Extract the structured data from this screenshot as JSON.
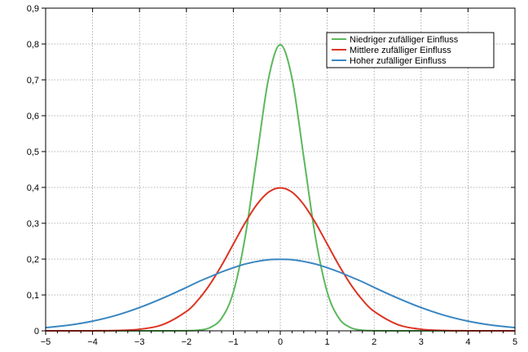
{
  "chart_data": {
    "type": "line",
    "title": "",
    "xlabel": "",
    "ylabel": "",
    "xlim": [
      -5,
      5
    ],
    "ylim": [
      0,
      0.9
    ],
    "grid": true,
    "legend_position": "top-right",
    "x_ticks": [
      -5,
      -4,
      -3,
      -2,
      -1,
      0,
      1,
      2,
      3,
      4,
      5
    ],
    "x_tick_labels": [
      "−5",
      "−4",
      "−3",
      "−2",
      "−1",
      "0",
      "1",
      "2",
      "3",
      "4",
      "5"
    ],
    "y_ticks": [
      0,
      0.1,
      0.2,
      0.3,
      0.4,
      0.5,
      0.6,
      0.7,
      0.8,
      0.9
    ],
    "y_tick_labels": [
      "0",
      "0,1",
      "0,2",
      "0,3",
      "0,4",
      "0,5",
      "0,6",
      "0,7",
      "0,8",
      "0,9"
    ],
    "x": [
      -5,
      -4.5,
      -4,
      -3.5,
      -3,
      -2.5,
      -2,
      -1.75,
      -1.5,
      -1.25,
      -1,
      -0.75,
      -0.5,
      -0.25,
      0,
      0.25,
      0.5,
      0.75,
      1,
      1.25,
      1.5,
      1.75,
      2,
      2.5,
      3,
      3.5,
      4,
      4.5,
      5
    ],
    "series": [
      {
        "name": "Niedriger zufälliger Einfluss",
        "color": "#5cb85c",
        "values": [
          0,
          0,
          0,
          0,
          0,
          0,
          0.0003,
          0.0017,
          0.0089,
          0.035,
          0.108,
          0.2605,
          0.4839,
          0.7041,
          0.7979,
          0.7041,
          0.4839,
          0.2605,
          0.108,
          0.035,
          0.0089,
          0.0017,
          0.0003,
          0,
          0,
          0,
          0,
          0,
          0
        ]
      },
      {
        "name": "Mittlere zufälliger Einfluss",
        "color": "#dd3322",
        "values": [
          1.5e-06,
          1.6e-05,
          0.000134,
          0.000873,
          0.0044,
          0.0175,
          0.054,
          0.0863,
          0.1295,
          0.1826,
          0.242,
          0.3011,
          0.3521,
          0.3867,
          0.3989,
          0.3867,
          0.3521,
          0.3011,
          0.242,
          0.1826,
          0.1295,
          0.0863,
          0.054,
          0.0175,
          0.0044,
          0.000873,
          0.000134,
          1.6e-05,
          1.5e-06
        ]
      },
      {
        "name": "Hoher zufälliger Einfluss",
        "color": "#3a86c0",
        "values": [
          0.0088,
          0.0158,
          0.027,
          0.0431,
          0.0648,
          0.0913,
          0.121,
          0.1367,
          0.1506,
          0.1642,
          0.176,
          0.1862,
          0.1933,
          0.1983,
          0.1995,
          0.1983,
          0.1933,
          0.1862,
          0.176,
          0.1642,
          0.1506,
          0.1367,
          0.121,
          0.0913,
          0.0648,
          0.0431,
          0.027,
          0.0158,
          0.0088
        ]
      }
    ]
  }
}
